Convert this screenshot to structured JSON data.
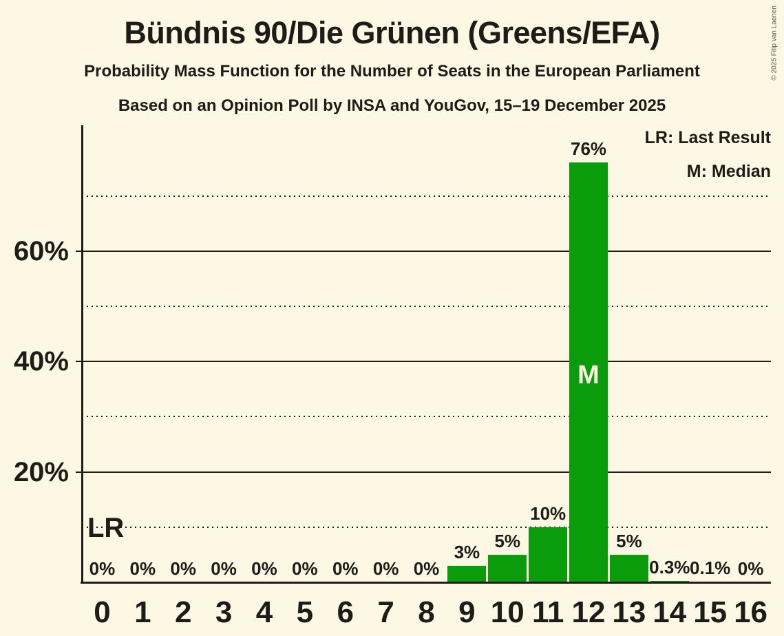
{
  "title": "Bündnis 90/Die Grünen (Greens/EFA)",
  "subtitle1": "Probability Mass Function for the Number of Seats in the European Parliament",
  "subtitle2": "Based on an Opinion Poll by INSA and YouGov, 15–19 December 2025",
  "copyright": "© 2025 Filip van Laenen",
  "legend": {
    "lr": "LR: Last Result",
    "m": "M: Median"
  },
  "annotations": {
    "lr_label": "LR",
    "median_label": "M"
  },
  "colors": {
    "background": "#fcf8e3",
    "bar": "#0a9c0a",
    "text": "#1d1c18",
    "copyright_text": "#5a5a50",
    "median_letter": "#fcf8e3"
  },
  "chart_data": {
    "type": "bar",
    "title": "Bündnis 90/Die Grünen (Greens/EFA)",
    "categories": [
      "0",
      "1",
      "2",
      "3",
      "4",
      "5",
      "6",
      "7",
      "8",
      "9",
      "10",
      "11",
      "12",
      "13",
      "14",
      "15",
      "16"
    ],
    "values": [
      0,
      0,
      0,
      0,
      0,
      0,
      0,
      0,
      0,
      3,
      5,
      10,
      76,
      5,
      0.3,
      0.1,
      0
    ],
    "bar_labels": [
      "0%",
      "0%",
      "0%",
      "0%",
      "0%",
      "0%",
      "0%",
      "0%",
      "0%",
      "3%",
      "5%",
      "10%",
      "76%",
      "5%",
      "0.3%",
      "0.1%",
      "0%"
    ],
    "xlabel": "",
    "ylabel": "",
    "ylim": [
      0,
      83
    ],
    "yticks": [
      {
        "pct": 20,
        "label": "20%"
      },
      {
        "pct": 40,
        "label": "40%"
      },
      {
        "pct": 60,
        "label": "60%"
      }
    ],
    "solid_gridlines_pct": [
      20,
      40,
      60
    ],
    "dotted_gridlines_pct": [
      10,
      30,
      50,
      70
    ],
    "legend_position": "top-right",
    "median_seat": 12,
    "last_result_pct": 10,
    "grid": true
  }
}
